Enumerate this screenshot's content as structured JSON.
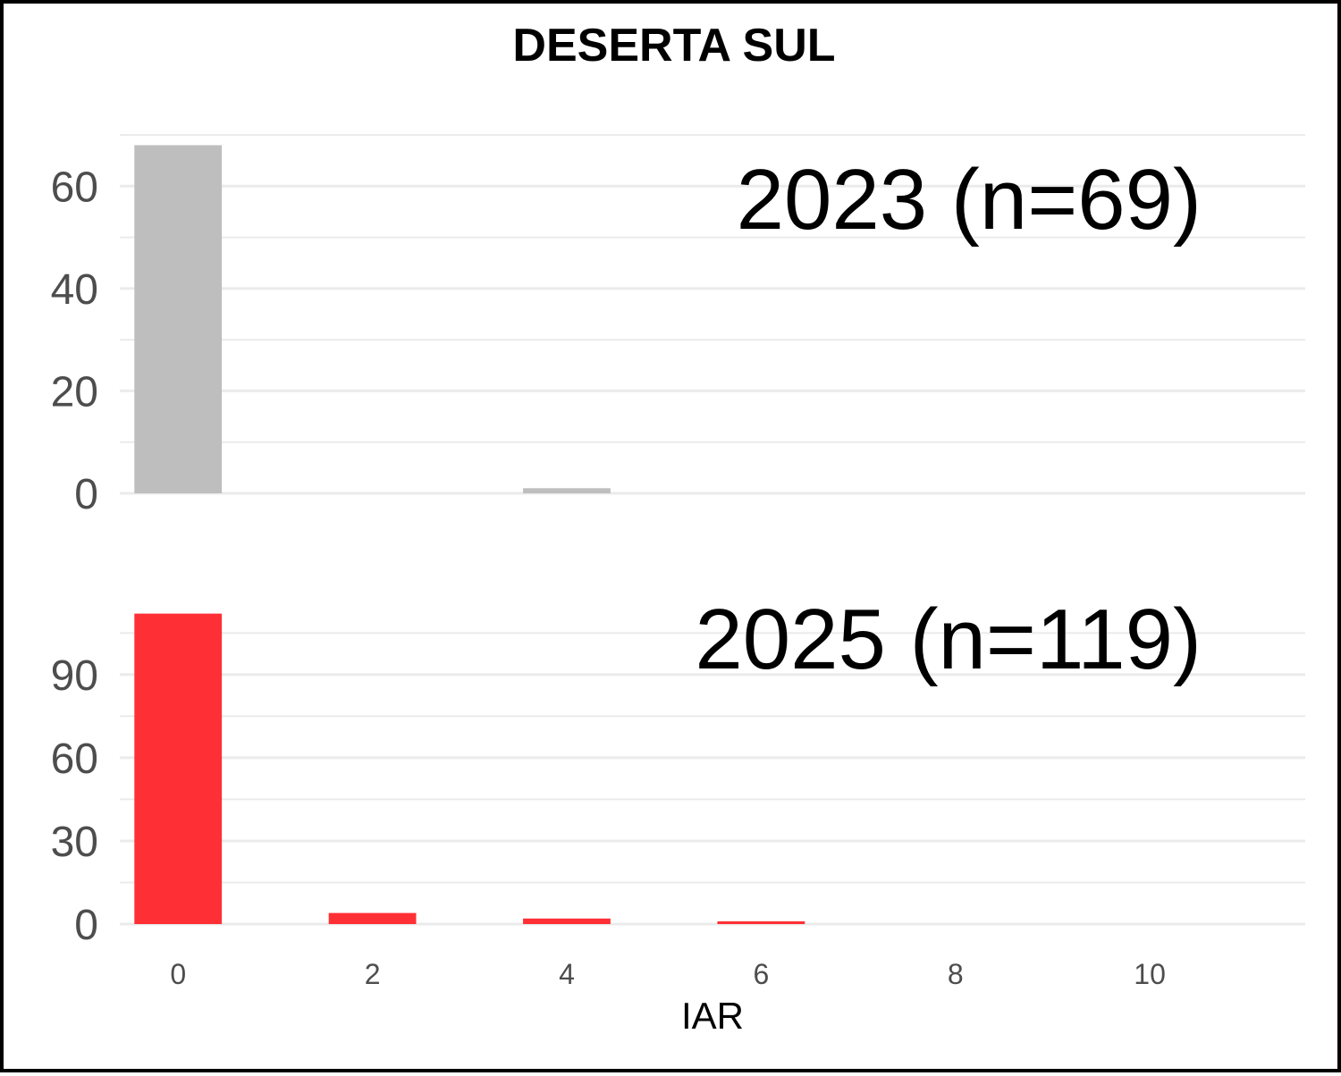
{
  "chart_data": {
    "type": "bar",
    "title": "DESERTA SUL",
    "xlabel": "IAR",
    "ylabel": "",
    "x_ticks": [
      "0",
      "2",
      "4",
      "6",
      "8",
      "10"
    ],
    "xlim": [
      -0.6,
      11.6
    ],
    "grid": true,
    "legend": "none",
    "panels": [
      {
        "label": "2023 (n=69)",
        "color": "#bebebe",
        "ylim": [
          0,
          70
        ],
        "y_ticks": [
          "0",
          "20",
          "40",
          "60"
        ],
        "bars": [
          {
            "x": 0,
            "value": 68
          },
          {
            "x": 4,
            "value": 1
          }
        ]
      },
      {
        "label": "2025 (n=119)",
        "color": "#ff3035",
        "ylim": [
          0,
          118
        ],
        "y_ticks": [
          "0",
          "30",
          "60",
          "90"
        ],
        "bars": [
          {
            "x": 0,
            "value": 112
          },
          {
            "x": 2,
            "value": 4
          },
          {
            "x": 4,
            "value": 2
          },
          {
            "x": 6,
            "value": 1
          }
        ]
      }
    ]
  }
}
